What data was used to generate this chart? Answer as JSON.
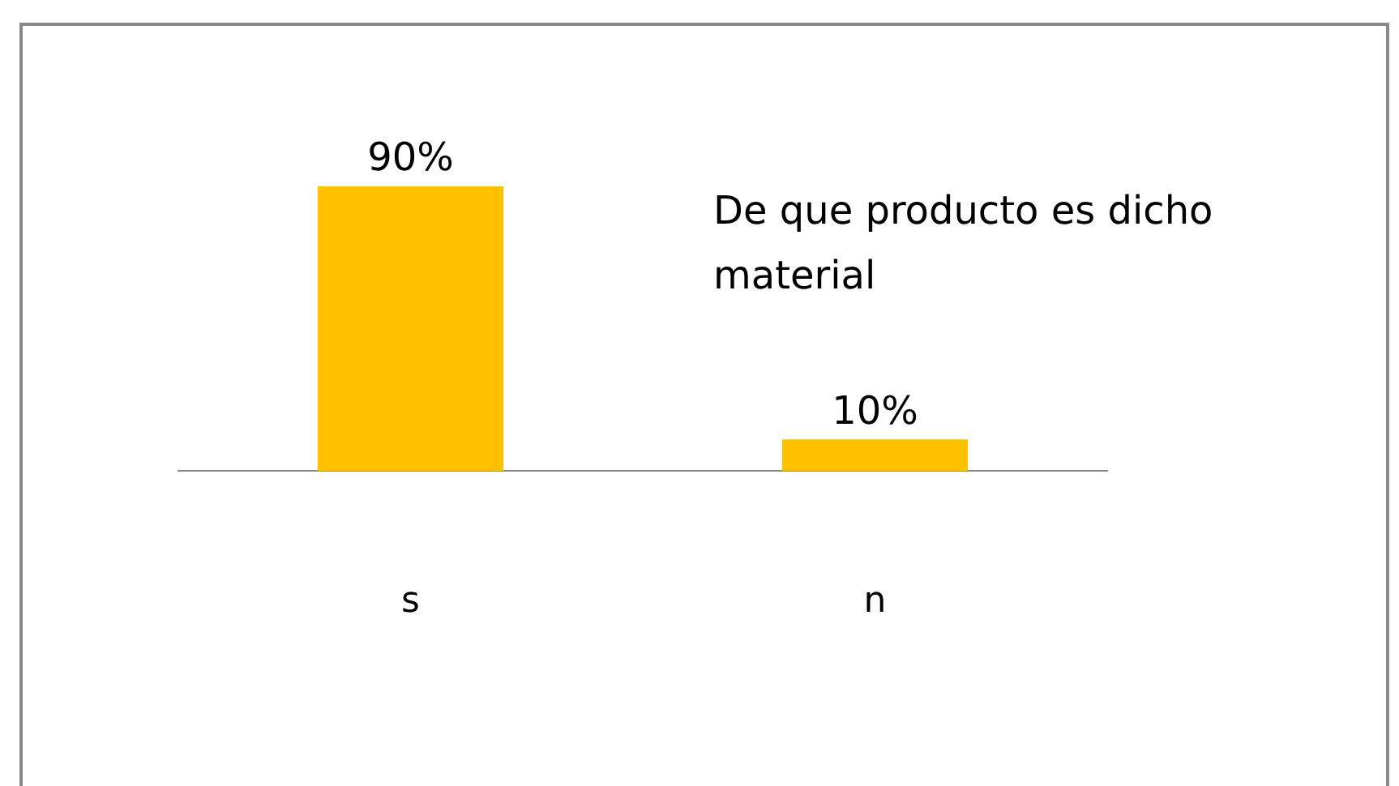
{
  "chart_data": {
    "type": "bar",
    "title": "De que producto es dicho material",
    "categories": [
      "s",
      "n"
    ],
    "values": [
      90,
      10
    ],
    "value_labels": [
      "90%",
      "10%"
    ],
    "color": "#ffc000",
    "grid": false,
    "legend": false
  }
}
